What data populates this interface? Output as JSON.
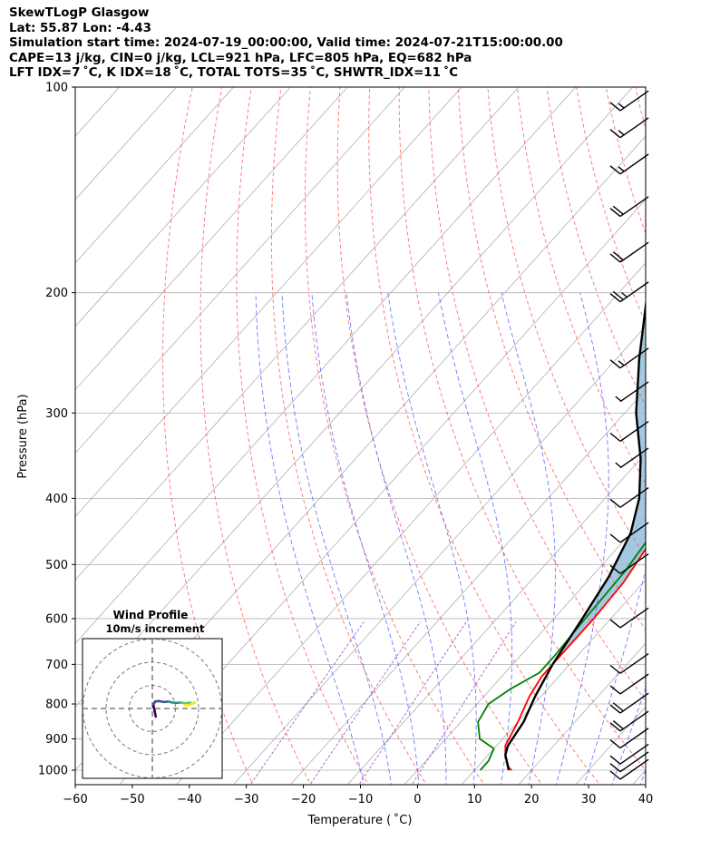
{
  "header": {
    "line1": "SkewTLogP Glasgow",
    "line2": "Lat: 55.87   Lon: -4.43",
    "line3": "Simulation start time: 2024-07-19_00:00:00, Valid time: 2024-07-21T15:00:00.00",
    "line4": "CAPE=13 j/kg, CIN=0 j/kg, LCL=921 hPa, LFC=805 hPa, EQ=682 hPa",
    "line5": "LFT IDX=7 ˚C, K IDX=18 ˚C, TOTAL TOTS=35 ˚C, SHWTR_IDX=11 ˚C"
  },
  "chart_data": {
    "type": "line",
    "xlabel": "Temperature ( ˚C)",
    "ylabel": "Pressure (hPa)",
    "xlim": [
      -60,
      40
    ],
    "ylim": [
      1050,
      100
    ],
    "y_scale": "log",
    "xticks": [
      "−60",
      "−50",
      "−40",
      "−30",
      "−20",
      "−10",
      "0",
      "10",
      "20",
      "30",
      "40"
    ],
    "yticks": [
      "1000",
      "900",
      "800",
      "700",
      "600",
      "500",
      "400",
      "300",
      "200",
      "100"
    ],
    "grid": true,
    "series": [
      {
        "role": "temperature",
        "color": "#ff0000",
        "points": [
          [
            16.5,
            1000
          ],
          [
            15.5,
            990
          ],
          [
            13,
            950
          ],
          [
            11.5,
            920
          ],
          [
            10,
            850
          ],
          [
            8,
            780
          ],
          [
            7,
            730
          ],
          [
            7,
            660
          ],
          [
            7,
            600
          ],
          [
            6.5,
            530
          ],
          [
            5,
            470
          ],
          [
            2,
            410
          ],
          [
            -0.5,
            360
          ],
          [
            -2,
            330
          ],
          [
            -1,
            300
          ],
          [
            0,
            270
          ],
          [
            3,
            240
          ],
          [
            7,
            210
          ],
          [
            9,
            180
          ],
          [
            9.5,
            160
          ],
          [
            9.5,
            140
          ],
          [
            10,
            120
          ],
          [
            11.5,
            100
          ]
        ]
      },
      {
        "role": "dewpoint",
        "color": "#008000",
        "points": [
          [
            11,
            1000
          ],
          [
            11,
            970
          ],
          [
            10,
            930
          ],
          [
            6,
            900
          ],
          [
            3,
            850
          ],
          [
            2,
            800
          ],
          [
            3.5,
            760
          ],
          [
            6,
            720
          ],
          [
            6,
            680
          ],
          [
            5.5,
            600
          ],
          [
            5,
            510
          ],
          [
            4,
            460
          ],
          [
            1,
            410
          ],
          [
            -2.5,
            360
          ],
          [
            -9,
            310
          ],
          [
            -13.5,
            290
          ],
          [
            -16,
            250
          ],
          [
            -19,
            200
          ],
          [
            -21,
            170
          ],
          [
            -19,
            150
          ],
          [
            -12,
            120
          ],
          [
            -6,
            100
          ]
        ]
      },
      {
        "role": "parcel",
        "color": "#000000",
        "points": [
          [
            16,
            1000
          ],
          [
            13,
            950
          ],
          [
            12,
            921
          ],
          [
            11,
            850
          ],
          [
            9,
            780
          ],
          [
            7,
            700
          ],
          [
            5,
            600
          ],
          [
            3,
            520
          ],
          [
            0,
            450
          ],
          [
            -4,
            400
          ],
          [
            -10,
            350
          ],
          [
            -18,
            300
          ],
          [
            -26,
            250
          ],
          [
            -35,
            200
          ],
          [
            -46,
            150
          ],
          [
            -60,
            110
          ],
          [
            -64,
            100
          ]
        ]
      }
    ],
    "cape_shading_color": "#a4c8e0",
    "wind_barbs": [
      {
        "p": 1000,
        "speed_kt": 10
      },
      {
        "p": 975,
        "speed_kt": 10
      },
      {
        "p": 950,
        "speed_kt": 10
      },
      {
        "p": 900,
        "speed_kt": 10
      },
      {
        "p": 850,
        "speed_kt": 20
      },
      {
        "p": 800,
        "speed_kt": 20
      },
      {
        "p": 750,
        "speed_kt": 10
      },
      {
        "p": 700,
        "speed_kt": 10
      },
      {
        "p": 600,
        "speed_kt": 10
      },
      {
        "p": 500,
        "speed_kt": 10
      },
      {
        "p": 450,
        "speed_kt": 10
      },
      {
        "p": 400,
        "speed_kt": 10
      },
      {
        "p": 350,
        "speed_kt": 5
      },
      {
        "p": 320,
        "speed_kt": 10
      },
      {
        "p": 280,
        "speed_kt": 5
      },
      {
        "p": 250,
        "speed_kt": 15
      },
      {
        "p": 200,
        "speed_kt": 25
      },
      {
        "p": 175,
        "speed_kt": 20
      },
      {
        "p": 150,
        "speed_kt": 20
      },
      {
        "p": 130,
        "speed_kt": 15
      },
      {
        "p": 115,
        "speed_kt": 15
      },
      {
        "p": 105,
        "speed_kt": 15
      }
    ],
    "hodograph": {
      "title": "Wind Profile",
      "subtitle": "10m/s increment",
      "ring_step_ms": 10,
      "rings": 3,
      "points": [
        [
          1.5,
          -3.5
        ],
        [
          1.2,
          -2.2
        ],
        [
          1.0,
          -1.0
        ],
        [
          0.6,
          0.5
        ],
        [
          0.5,
          1.8
        ],
        [
          1.2,
          3.0
        ],
        [
          3.0,
          3.2
        ],
        [
          5.0,
          2.8
        ],
        [
          7.0,
          3.0
        ],
        [
          8.5,
          2.6
        ],
        [
          10.5,
          2.4
        ],
        [
          12.5,
          2.6
        ],
        [
          14.0,
          2.2
        ],
        [
          16.0,
          2.5
        ],
        [
          17.5,
          2.2
        ],
        [
          18.5,
          2.6
        ],
        [
          17.0,
          1.9
        ],
        [
          15.5,
          1.4
        ],
        [
          14.0,
          1.5
        ]
      ],
      "colormap": [
        "#440154",
        "#3b528b",
        "#21918c",
        "#5ec962",
        "#fde725"
      ]
    }
  }
}
